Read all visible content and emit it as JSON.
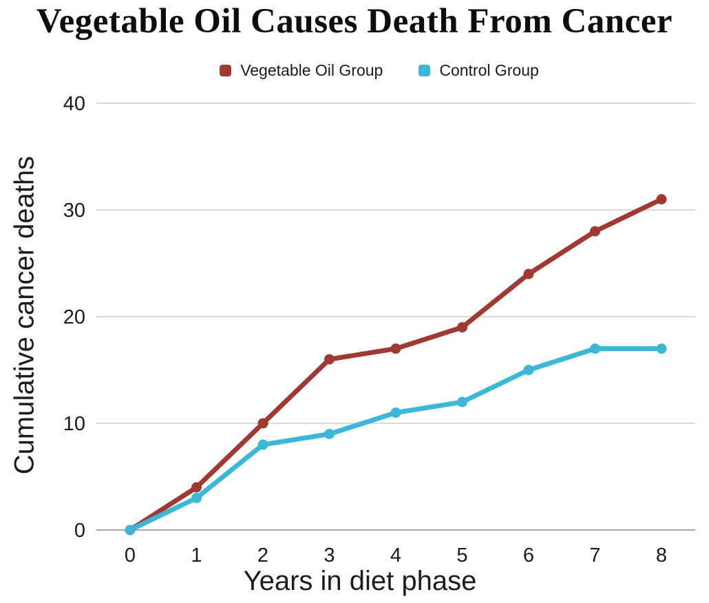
{
  "page": {
    "background": "#ffffff"
  },
  "chart_data": {
    "type": "line",
    "title": "Vegetable Oil Causes Death From Cancer",
    "xlabel": "Years in diet phase",
    "ylabel": "Cumulative cancer deaths",
    "x": [
      0,
      1,
      2,
      3,
      4,
      5,
      6,
      7,
      8
    ],
    "xtick_labels": [
      "0",
      "1",
      "2",
      "3",
      "4",
      "5",
      "6",
      "7",
      "8"
    ],
    "yticks": [
      0,
      10,
      20,
      30,
      40
    ],
    "ytick_labels": [
      "0",
      "10",
      "20",
      "30",
      "40"
    ],
    "ylim": [
      0,
      40
    ],
    "grid": "horizontal",
    "legend_position": "top-center",
    "series": [
      {
        "name": "Vegetable Oil Group",
        "color": "#9e3a33",
        "values": [
          0,
          4,
          10,
          16,
          17,
          19,
          24,
          28,
          31
        ]
      },
      {
        "name": "Control Group",
        "color": "#3db7d8",
        "values": [
          0,
          3,
          8,
          9,
          11,
          12,
          15,
          17,
          17
        ]
      }
    ],
    "style": {
      "gridline_color": "#d9d9d9",
      "zero_line_color": "#a6a6a6",
      "text_color": "#1a1a1a",
      "line_width": 7,
      "marker_radius": 7.5
    }
  }
}
